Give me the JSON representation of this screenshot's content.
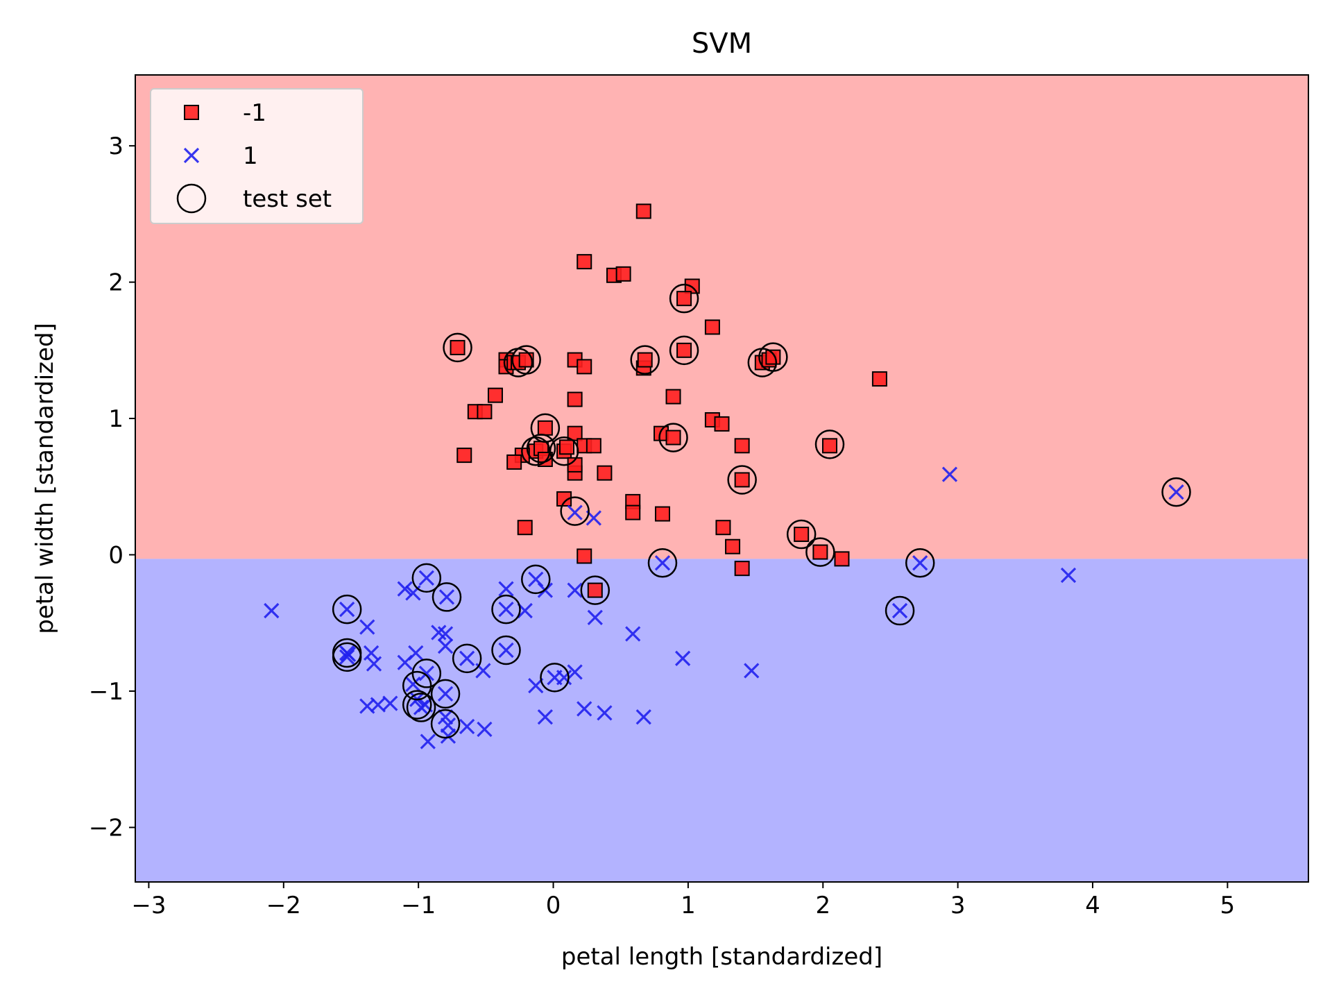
{
  "chart_data": {
    "type": "scatter",
    "title": "SVM",
    "xlabel": "petal length [standardized]",
    "ylabel": "petal width [standardized]",
    "xlim": [
      -3.1,
      5.6
    ],
    "ylim": [
      -2.4,
      3.52
    ],
    "xticks": [
      -3,
      -2,
      -1,
      0,
      1,
      2,
      3,
      4,
      5
    ],
    "yticks": [
      -2,
      -1,
      0,
      1,
      2,
      3
    ],
    "xtick_labels": [
      "−3",
      "−2",
      "−1",
      "0",
      "1",
      "2",
      "3",
      "4",
      "5"
    ],
    "ytick_labels": [
      "−2",
      "−1",
      "0",
      "1",
      "2",
      "3"
    ],
    "grid": false,
    "legend_position": "top-left",
    "decision_boundary": {
      "y": -0.03,
      "region_above": "-1",
      "region_below": "1"
    },
    "colors": {
      "region_above": "#ffb3b3",
      "region_below": "#b3b3ff",
      "class_neg": "#ff2020",
      "class_pos": "#2020ee",
      "marker_edge": "#000000"
    },
    "legend": [
      {
        "label": "-1",
        "marker": "square"
      },
      {
        "label": "1",
        "marker": "x"
      },
      {
        "label": "test set",
        "marker": "circle"
      }
    ],
    "series": [
      {
        "name": "-1",
        "marker": "square",
        "points": [
          [
            0.67,
            2.52
          ],
          [
            0.23,
            2.15
          ],
          [
            0.45,
            2.05
          ],
          [
            0.52,
            2.06
          ],
          [
            1.03,
            1.97
          ],
          [
            0.97,
            1.88
          ],
          [
            1.18,
            1.67
          ],
          [
            -0.71,
            1.52
          ],
          [
            0.97,
            1.5
          ],
          [
            -0.35,
            1.43
          ],
          [
            -0.35,
            1.38
          ],
          [
            -0.29,
            1.41
          ],
          [
            -0.26,
            1.41
          ],
          [
            -0.2,
            1.43
          ],
          [
            0.16,
            1.43
          ],
          [
            0.23,
            1.38
          ],
          [
            0.67,
            1.37
          ],
          [
            0.68,
            1.43
          ],
          [
            1.55,
            1.41
          ],
          [
            1.6,
            1.43
          ],
          [
            1.63,
            1.45
          ],
          [
            2.42,
            1.29
          ],
          [
            -0.43,
            1.17
          ],
          [
            0.16,
            1.14
          ],
          [
            0.89,
            1.16
          ],
          [
            -0.58,
            1.05
          ],
          [
            -0.51,
            1.05
          ],
          [
            1.18,
            0.99
          ],
          [
            1.25,
            0.96
          ],
          [
            -0.06,
            0.93
          ],
          [
            0.16,
            0.89
          ],
          [
            0.8,
            0.89
          ],
          [
            0.89,
            0.86
          ],
          [
            0.23,
            0.8
          ],
          [
            0.3,
            0.8
          ],
          [
            1.4,
            0.8
          ],
          [
            2.05,
            0.8
          ],
          [
            -0.13,
            0.76
          ],
          [
            -0.09,
            0.78
          ],
          [
            0.08,
            0.76
          ],
          [
            0.1,
            0.79
          ],
          [
            -0.23,
            0.73
          ],
          [
            -0.66,
            0.73
          ],
          [
            -0.29,
            0.68
          ],
          [
            -0.06,
            0.7
          ],
          [
            0.38,
            0.6
          ],
          [
            0.16,
            0.6
          ],
          [
            0.16,
            0.66
          ],
          [
            1.4,
            0.55
          ],
          [
            0.08,
            0.41
          ],
          [
            0.59,
            0.39
          ],
          [
            0.59,
            0.31
          ],
          [
            0.81,
            0.3
          ],
          [
            1.26,
            0.2
          ],
          [
            -0.21,
            0.2
          ],
          [
            1.33,
            0.06
          ],
          [
            1.84,
            0.15
          ],
          [
            1.98,
            0.02
          ],
          [
            2.14,
            -0.03
          ],
          [
            0.23,
            -0.01
          ],
          [
            1.4,
            -0.1
          ],
          [
            0.31,
            -0.26
          ]
        ]
      },
      {
        "name": "1",
        "marker": "x",
        "points": [
          [
            4.62,
            0.46
          ],
          [
            2.94,
            0.59
          ],
          [
            3.82,
            -0.15
          ],
          [
            2.72,
            -0.06
          ],
          [
            2.57,
            -0.41
          ],
          [
            0.81,
            -0.06
          ],
          [
            0.16,
            0.31
          ],
          [
            0.3,
            0.27
          ],
          [
            -2.09,
            -0.41
          ],
          [
            -1.53,
            -0.4
          ],
          [
            -1.53,
            -0.72
          ],
          [
            -1.53,
            -0.75
          ],
          [
            -1.52,
            -0.73
          ],
          [
            -1.38,
            -0.53
          ],
          [
            -1.35,
            -0.72
          ],
          [
            -1.33,
            -0.8
          ],
          [
            -1.38,
            -1.11
          ],
          [
            -1.3,
            -1.1
          ],
          [
            -1.21,
            -1.09
          ],
          [
            -1.1,
            -0.25
          ],
          [
            -1.04,
            -0.28
          ],
          [
            -0.94,
            -0.17
          ],
          [
            -1.1,
            -0.79
          ],
          [
            -1.02,
            -0.72
          ],
          [
            -1.04,
            -0.95
          ],
          [
            -1.01,
            -1.06
          ],
          [
            -0.98,
            -1.12
          ],
          [
            -0.95,
            -1.1
          ],
          [
            -0.94,
            -0.87
          ],
          [
            -0.85,
            -0.57
          ],
          [
            -0.8,
            -0.58
          ],
          [
            -0.79,
            -0.31
          ],
          [
            -0.8,
            -0.67
          ],
          [
            -0.8,
            -1.02
          ],
          [
            -0.8,
            -1.19
          ],
          [
            -0.78,
            -1.25
          ],
          [
            -0.78,
            -1.33
          ],
          [
            -0.93,
            -1.37
          ],
          [
            -0.64,
            -0.76
          ],
          [
            -0.64,
            -1.26
          ],
          [
            -0.52,
            -0.85
          ],
          [
            -0.51,
            -1.28
          ],
          [
            -0.35,
            -0.25
          ],
          [
            -0.35,
            -0.7
          ],
          [
            -0.35,
            -0.4
          ],
          [
            -0.21,
            -0.41
          ],
          [
            -0.13,
            -0.18
          ],
          [
            -0.06,
            -0.26
          ],
          [
            -0.13,
            -0.96
          ],
          [
            -0.06,
            -1.19
          ],
          [
            0.01,
            -0.9
          ],
          [
            0.16,
            -0.26
          ],
          [
            0.08,
            -0.9
          ],
          [
            0.16,
            -0.86
          ],
          [
            0.23,
            -1.13
          ],
          [
            0.38,
            -1.16
          ],
          [
            0.31,
            -0.46
          ],
          [
            0.59,
            -0.58
          ],
          [
            0.67,
            -1.19
          ],
          [
            0.96,
            -0.76
          ],
          [
            1.47,
            -0.85
          ]
        ]
      }
    ],
    "test_set": [
      [
        -0.71,
        1.52
      ],
      [
        -0.26,
        1.41
      ],
      [
        -0.2,
        1.43
      ],
      [
        0.68,
        1.43
      ],
      [
        0.97,
        1.88
      ],
      [
        0.97,
        1.5
      ],
      [
        1.55,
        1.41
      ],
      [
        1.63,
        1.45
      ],
      [
        2.05,
        0.81
      ],
      [
        -0.06,
        0.93
      ],
      [
        0.89,
        0.86
      ],
      [
        -0.13,
        0.76
      ],
      [
        -0.09,
        0.78
      ],
      [
        0.08,
        0.76
      ],
      [
        1.4,
        0.55
      ],
      [
        0.16,
        0.32
      ],
      [
        1.84,
        0.15
      ],
      [
        1.98,
        0.02
      ],
      [
        0.31,
        -0.26
      ],
      [
        0.81,
        -0.06
      ],
      [
        2.72,
        -0.06
      ],
      [
        2.57,
        -0.41
      ],
      [
        4.62,
        0.46
      ],
      [
        -0.94,
        -0.17
      ],
      [
        -0.79,
        -0.31
      ],
      [
        -1.53,
        -0.4
      ],
      [
        -0.35,
        -0.4
      ],
      [
        -0.13,
        -0.18
      ],
      [
        -1.53,
        -0.72
      ],
      [
        -1.53,
        -0.75
      ],
      [
        -0.35,
        -0.7
      ],
      [
        -0.64,
        -0.76
      ],
      [
        -0.94,
        -0.87
      ],
      [
        -1.01,
        -0.96
      ],
      [
        -0.8,
        -1.02
      ],
      [
        0.01,
        -0.9
      ],
      [
        -1.01,
        -1.1
      ],
      [
        -0.98,
        -1.12
      ],
      [
        -0.8,
        -1.24
      ]
    ]
  }
}
